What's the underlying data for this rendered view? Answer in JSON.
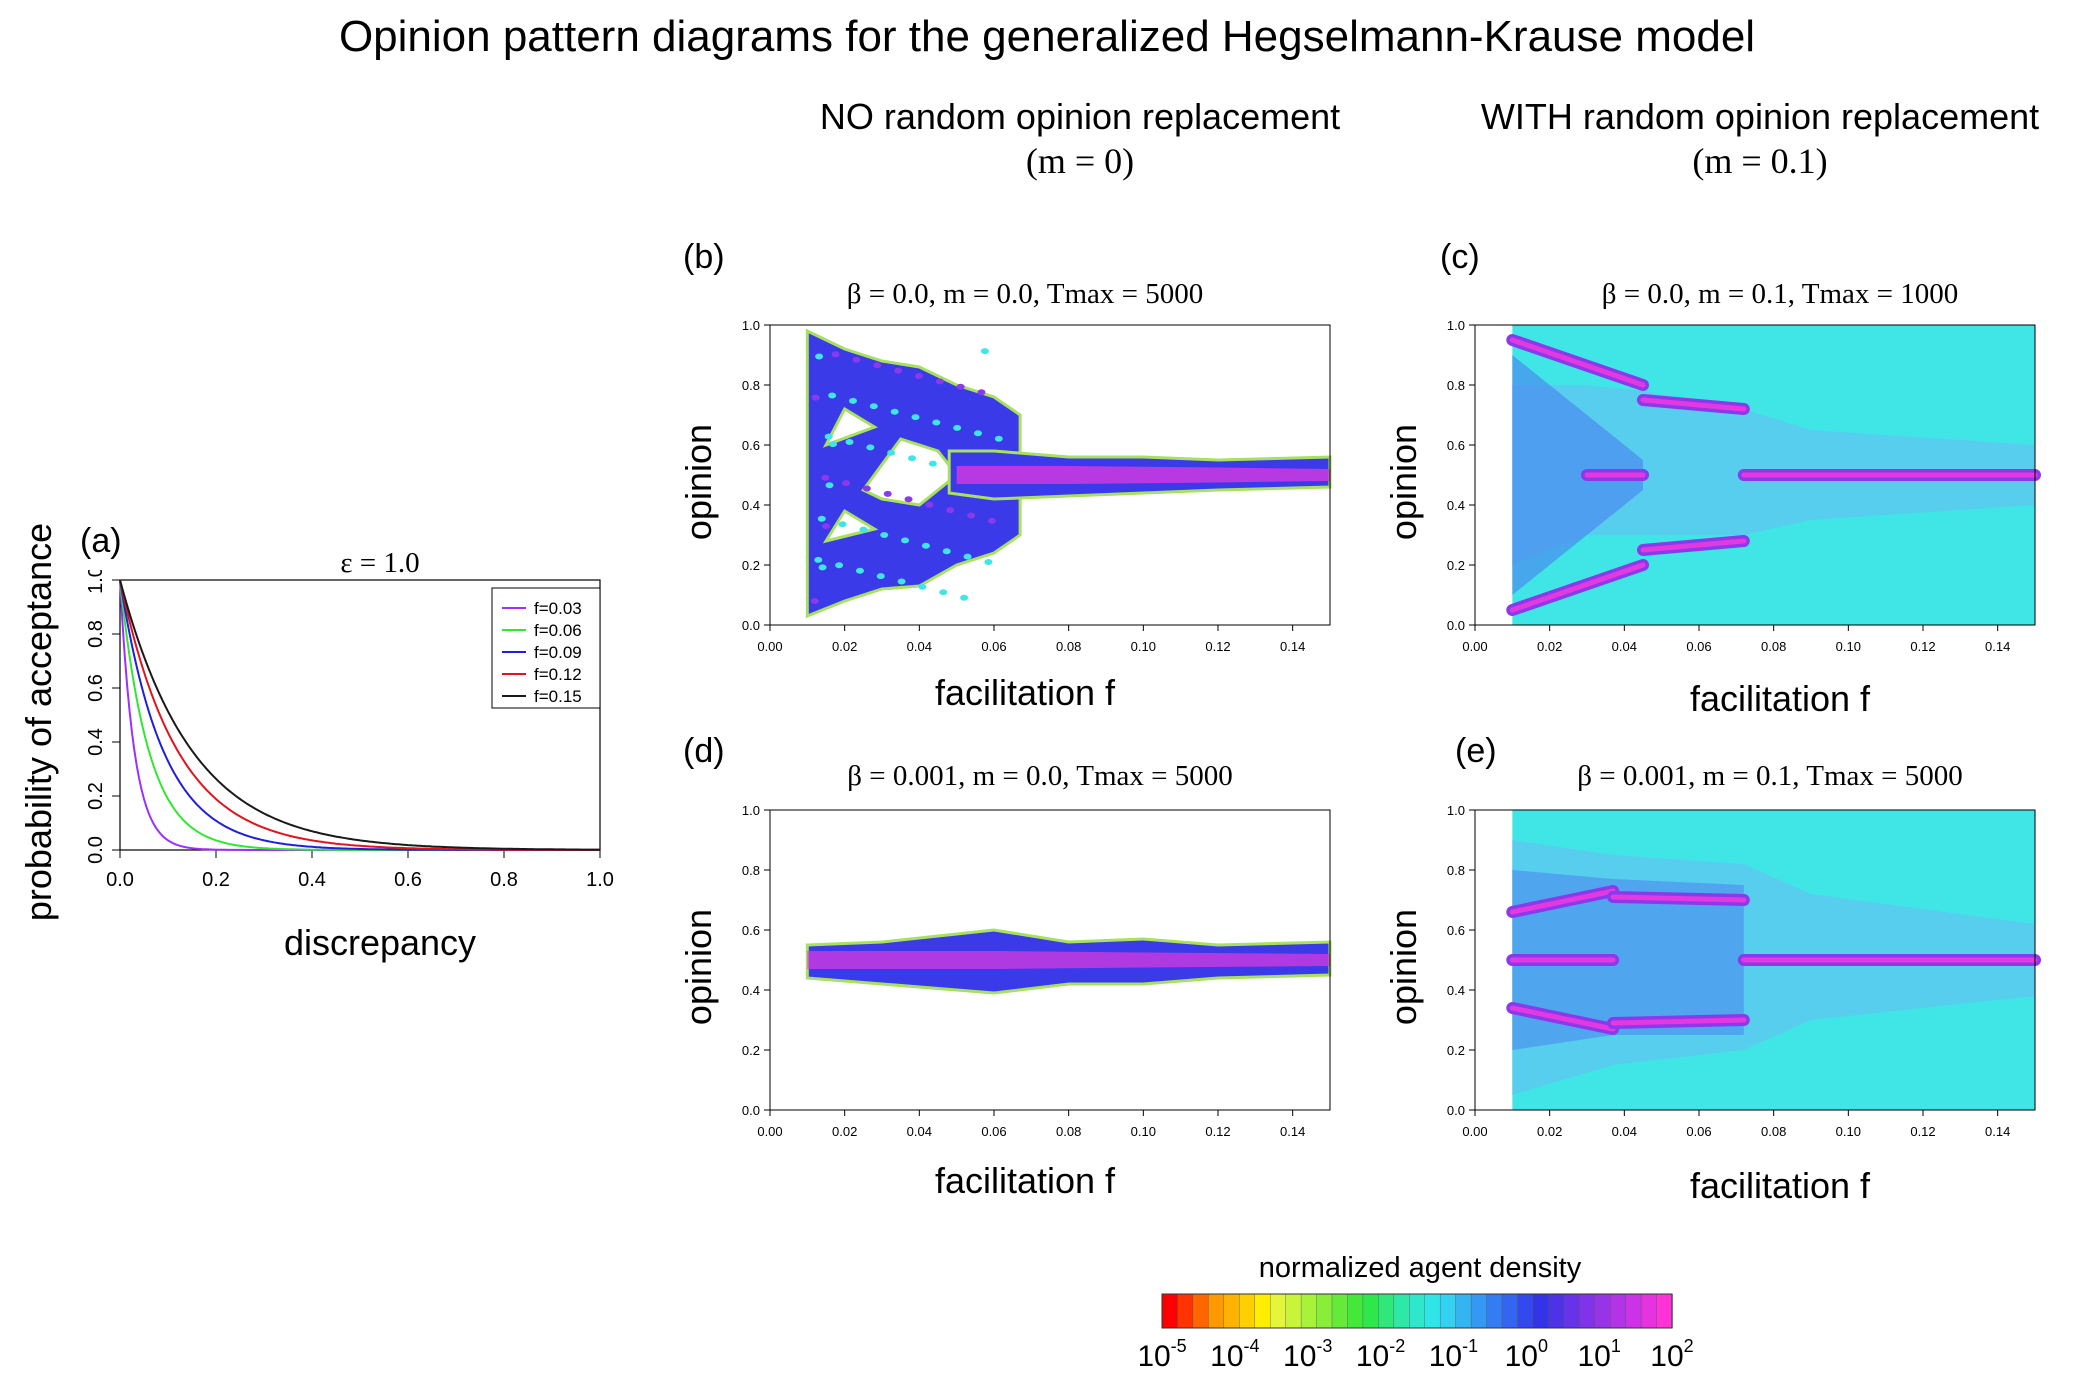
{
  "title": "Opinion pattern diagrams for the generalized Hegselmann-Krause model",
  "columns": {
    "left": {
      "line1": "NO random opinion replacement",
      "line2": "(m = 0)"
    },
    "right": {
      "line1": "WITH random opinion replacement",
      "line2": "(m = 0.1)"
    }
  },
  "panels": {
    "a": {
      "label": "(a)",
      "title": "ε = 1.0",
      "xlabel": "discrepancy",
      "ylabel": "probability of acceptance"
    },
    "b": {
      "label": "(b)",
      "title": "β = 0.0, m = 0.0, Tmax = 5000",
      "xlabel": "facilitation f",
      "ylabel": "opinion"
    },
    "c": {
      "label": "(c)",
      "title": "β = 0.0, m = 0.1, Tmax = 1000",
      "xlabel": "facilitation f",
      "ylabel": "opinion"
    },
    "d": {
      "label": "(d)",
      "title": "β = 0.001, m = 0.0, Tmax = 5000",
      "xlabel": "facilitation f",
      "ylabel": "opinion"
    },
    "e": {
      "label": "(e)",
      "title": "β = 0.001, m = 0.1, Tmax = 5000",
      "xlabel": "facilitation f",
      "ylabel": "opinion"
    }
  },
  "colorbar": {
    "title": "normalized agent density",
    "ticks": [
      "10-5",
      "10-4",
      "10-3",
      "10-2",
      "10-1",
      "100",
      "101",
      "102"
    ],
    "tick_base": [
      "10",
      "10",
      "10",
      "10",
      "10",
      "10",
      "10",
      "10"
    ],
    "tick_exp": [
      "-5",
      "-4",
      "-3",
      "-2",
      "-1",
      "0",
      "1",
      "2"
    ],
    "colors": [
      "#ff0000",
      "#ff3300",
      "#ff6600",
      "#ff9900",
      "#ffb300",
      "#ffd000",
      "#ffee00",
      "#e5f53a",
      "#c8f53a",
      "#a8f23a",
      "#88ee3a",
      "#66ea3a",
      "#44e83a",
      "#2ee84a",
      "#2ee87a",
      "#2ee8a8",
      "#2ee8cc",
      "#2ee6e8",
      "#33d2f0",
      "#33b5f2",
      "#3399f2",
      "#337df2",
      "#3366f0",
      "#3349ee",
      "#3333e8",
      "#4d33e8",
      "#6633e8",
      "#8033e8",
      "#9933e6",
      "#b333e6",
      "#cc33e6",
      "#e633e0",
      "#ff33d8"
    ]
  },
  "chart_data": [
    {
      "panel": "a",
      "type": "line",
      "title": "ε = 1.0",
      "xlabel": "discrepancy",
      "ylabel": "probability of acceptance",
      "xlim": [
        0,
        1
      ],
      "ylim": [
        0,
        1
      ],
      "xticks": [
        "0.0",
        "0.2",
        "0.4",
        "0.6",
        "0.8",
        "1.0"
      ],
      "yticks": [
        "0.0",
        "0.2",
        "0.4",
        "0.6",
        "0.8",
        "1.0"
      ],
      "legend_position": "top-right",
      "function": "exp(-x/f)",
      "x": [
        0,
        0.02,
        0.04,
        0.06,
        0.08,
        0.1,
        0.15,
        0.2,
        0.25,
        0.3,
        0.4,
        0.5,
        0.6,
        0.8,
        1.0
      ],
      "series": [
        {
          "name": "f=0.03",
          "color": "#9b30ff",
          "values": [
            1.0,
            0.513,
            0.264,
            0.135,
            0.069,
            0.036,
            0.007,
            0.001,
            0.0,
            0.0,
            0.0,
            0.0,
            0.0,
            0.0,
            0.0
          ]
        },
        {
          "name": "f=0.06",
          "color": "#33e633",
          "values": [
            1.0,
            0.717,
            0.513,
            0.368,
            0.264,
            0.189,
            0.082,
            0.036,
            0.016,
            0.007,
            0.001,
            0.0,
            0.0,
            0.0,
            0.0
          ]
        },
        {
          "name": "f=0.09",
          "color": "#1f1fdd",
          "values": [
            1.0,
            0.801,
            0.641,
            0.513,
            0.411,
            0.329,
            0.189,
            0.108,
            0.062,
            0.036,
            0.012,
            0.004,
            0.001,
            0.0,
            0.0
          ]
        },
        {
          "name": "f=0.12",
          "color": "#e0141e",
          "values": [
            1.0,
            0.846,
            0.717,
            0.607,
            0.513,
            0.435,
            0.287,
            0.189,
            0.125,
            0.082,
            0.036,
            0.016,
            0.007,
            0.001,
            0.0
          ]
        },
        {
          "name": "f=0.15",
          "color": "#1a1a1a",
          "values": [
            1.0,
            0.875,
            0.766,
            0.67,
            0.587,
            0.513,
            0.368,
            0.264,
            0.189,
            0.135,
            0.069,
            0.036,
            0.018,
            0.005,
            0.001
          ]
        }
      ]
    },
    {
      "panel": "b",
      "type": "heatmap",
      "title": "β = 0.0, m = 0.0, Tmax = 5000",
      "xlabel": "facilitation f",
      "ylabel": "opinion",
      "xlim": [
        0,
        0.15
      ],
      "ylim": [
        0,
        1
      ],
      "xticks": [
        "0.00",
        "0.02",
        "0.04",
        "0.06",
        "0.08",
        "0.10",
        "0.12",
        "0.14"
      ],
      "yticks": [
        "0.0",
        "0.2",
        "0.4",
        "0.6",
        "0.8",
        "1.0"
      ],
      "background_density": "none",
      "bands": [
        {
          "f": [
            0.01,
            0.067
          ],
          "opinion_low": [
            0.03,
            0.13,
            0.26
          ],
          "opinion_high": [
            0.98,
            0.87,
            0.73
          ],
          "density": "scattered clusters"
        },
        {
          "f": [
            0.048,
            0.15
          ],
          "opinion_center": 0.5,
          "width": [
            0.14,
            0.08
          ],
          "density": "high"
        }
      ]
    },
    {
      "panel": "c",
      "type": "heatmap",
      "title": "β = 0.0, m = 0.1, Tmax = 1000",
      "xlabel": "facilitation f",
      "ylabel": "opinion",
      "xlim": [
        0,
        0.15
      ],
      "ylim": [
        0,
        1
      ],
      "xticks": [
        "0.00",
        "0.02",
        "0.04",
        "0.06",
        "0.08",
        "0.10",
        "0.12",
        "0.14"
      ],
      "yticks": [
        "0.0",
        "0.2",
        "0.4",
        "0.6",
        "0.8",
        "1.0"
      ],
      "background_density": "low",
      "bands": [
        {
          "f": [
            0.01,
            0.045
          ],
          "opinion": [
            0.95,
            0.8
          ],
          "density": "high"
        },
        {
          "f": [
            0.045,
            0.072
          ],
          "opinion": [
            0.75,
            0.72
          ],
          "density": "high"
        },
        {
          "f": [
            0.01,
            0.045
          ],
          "opinion": [
            0.05,
            0.2
          ],
          "density": "high"
        },
        {
          "f": [
            0.045,
            0.072
          ],
          "opinion": [
            0.25,
            0.28
          ],
          "density": "high"
        },
        {
          "f": [
            0.03,
            0.045
          ],
          "opinion": [
            0.5,
            0.5
          ],
          "density": "high"
        },
        {
          "f": [
            0.072,
            0.15
          ],
          "opinion": [
            0.5,
            0.5
          ],
          "density": "very high"
        }
      ]
    },
    {
      "panel": "d",
      "type": "heatmap",
      "title": "β = 0.001, m = 0.0, Tmax = 5000",
      "xlabel": "facilitation f",
      "ylabel": "opinion",
      "xlim": [
        0,
        0.15
      ],
      "ylim": [
        0,
        1
      ],
      "xticks": [
        "0.00",
        "0.02",
        "0.04",
        "0.06",
        "0.08",
        "0.10",
        "0.12",
        "0.14"
      ],
      "yticks": [
        "0.0",
        "0.2",
        "0.4",
        "0.6",
        "0.8",
        "1.0"
      ],
      "background_density": "none",
      "bands": [
        {
          "f": [
            0.01,
            0.15
          ],
          "opinion_center": 0.5,
          "width": [
            0.1,
            0.1
          ],
          "density": "high"
        }
      ]
    },
    {
      "panel": "e",
      "type": "heatmap",
      "title": "β = 0.001, m = 0.1, Tmax = 5000",
      "xlabel": "facilitation f",
      "ylabel": "opinion",
      "xlim": [
        0,
        0.15
      ],
      "ylim": [
        0,
        1
      ],
      "xticks": [
        "0.00",
        "0.02",
        "0.04",
        "0.06",
        "0.08",
        "0.10",
        "0.12",
        "0.14"
      ],
      "yticks": [
        "0.0",
        "0.2",
        "0.4",
        "0.6",
        "0.8",
        "1.0"
      ],
      "background_density": "low",
      "bands": [
        {
          "f": [
            0.01,
            0.037
          ],
          "opinion": [
            0.66,
            0.73
          ],
          "density": "high"
        },
        {
          "f": [
            0.037,
            0.072
          ],
          "opinion": [
            0.71,
            0.7
          ],
          "density": "high"
        },
        {
          "f": [
            0.01,
            0.037
          ],
          "opinion": [
            0.5,
            0.5
          ],
          "density": "high"
        },
        {
          "f": [
            0.01,
            0.037
          ],
          "opinion": [
            0.34,
            0.27
          ],
          "density": "high"
        },
        {
          "f": [
            0.037,
            0.072
          ],
          "opinion": [
            0.29,
            0.3
          ],
          "density": "high"
        },
        {
          "f": [
            0.072,
            0.15
          ],
          "opinion": [
            0.5,
            0.5
          ],
          "density": "very high"
        }
      ]
    }
  ]
}
